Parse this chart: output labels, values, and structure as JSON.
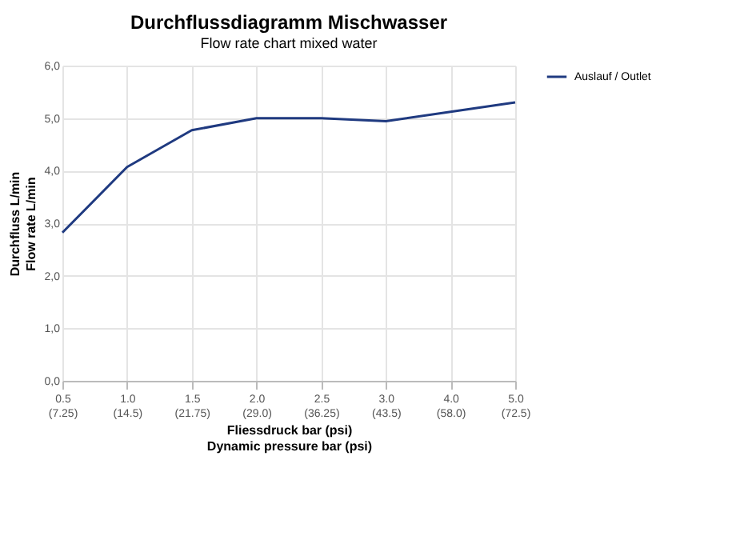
{
  "chart_data": {
    "type": "line",
    "title": "Durchflussdiagramm Mischwasser",
    "subtitle": "Flow rate chart mixed water",
    "xlabel": "Fliessdruck bar (psi)\nDynamic pressure bar (psi)",
    "ylabel": "Durchfluss L/min\nFlow rate L/min",
    "categories": [
      "0.5\n(7.25)",
      "1.0\n(14.5)",
      "1.5\n(21.75)",
      "2.0\n(29.0)",
      "2.5\n(36.25)",
      "3.0\n(43.5)",
      "4.0\n(58.0)",
      "5.0\n(72.5)"
    ],
    "series": [
      {
        "name": "Auslauf / Outlet",
        "color": "#1f3a80",
        "values": [
          2.82,
          4.07,
          4.77,
          5.0,
          5.0,
          4.94,
          5.12,
          5.3
        ]
      }
    ],
    "ylim": [
      0,
      6
    ],
    "yticks": [
      {
        "value": 0,
        "label": "0,0"
      },
      {
        "value": 1,
        "label": "1,0"
      },
      {
        "value": 2,
        "label": "2,0"
      },
      {
        "value": 3,
        "label": "3,0"
      },
      {
        "value": 4,
        "label": "4,0"
      },
      {
        "value": 5,
        "label": "5,0"
      },
      {
        "value": 6,
        "label": "6,0"
      }
    ],
    "grid": true,
    "legend": "right",
    "marker": "none",
    "line_style": "solid"
  }
}
